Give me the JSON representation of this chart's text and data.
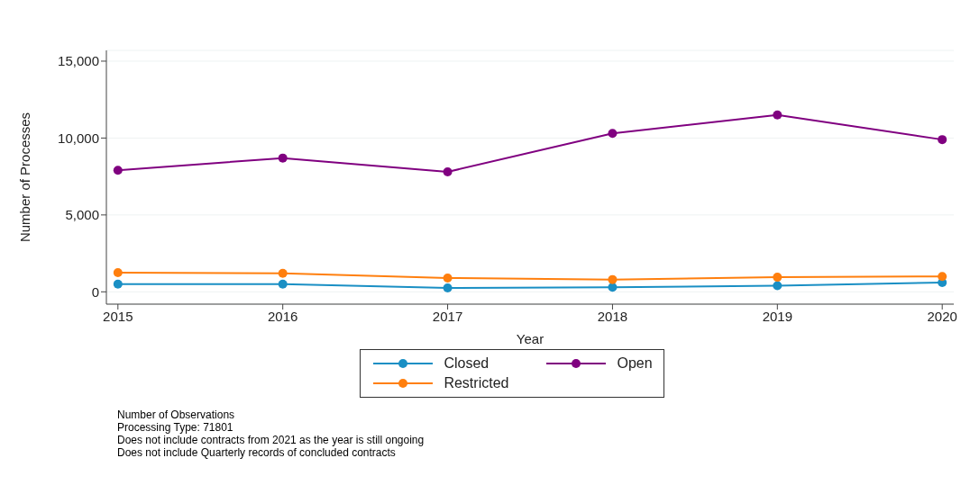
{
  "chart_data": {
    "type": "line",
    "xlabel": "Year",
    "ylabel": "Number of Processes",
    "x": [
      2015,
      2016,
      2017,
      2018,
      2019,
      2020
    ],
    "series": [
      {
        "name": "Closed",
        "color": "#1a8fc4",
        "values": [
          500,
          500,
          250,
          300,
          400,
          600
        ]
      },
      {
        "name": "Open",
        "color": "#800080",
        "values": [
          7900,
          8700,
          7800,
          10300,
          11500,
          9900
        ]
      },
      {
        "name": "Restricted",
        "color": "#ff7f0e",
        "values": [
          1250,
          1200,
          900,
          800,
          950,
          1000
        ]
      }
    ],
    "xlim": [
      2014.93,
      2020.07
    ],
    "xticks": [
      2015,
      2016,
      2017,
      2018,
      2019,
      2020
    ],
    "ylim": [
      -800,
      15700
    ],
    "yticks": [
      0,
      {
        "value": 5000,
        "label": "5,000"
      },
      {
        "value": 10000,
        "label": "10,000"
      },
      {
        "value": 15000,
        "label": "15,000"
      }
    ],
    "grid": "y",
    "legend": "bottom",
    "marker": "circle",
    "line_style": "solid",
    "annotations": [
      "Number of Observations",
      "Processing Type: 71801",
      "Does not include contracts from 2021 as the year is still ongoing",
      "Does not include Quarterly records of concluded contracts"
    ]
  }
}
